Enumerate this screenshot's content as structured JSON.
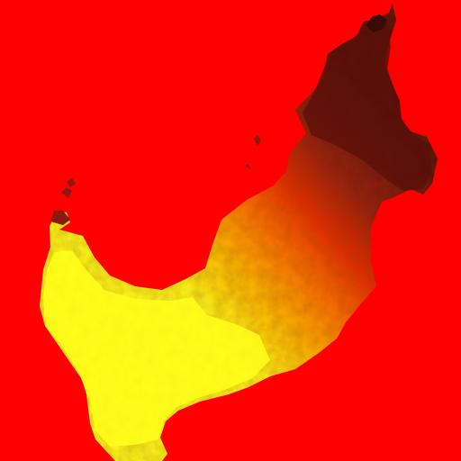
{
  "map": {
    "type": "choropleth-heatmap",
    "legend_visible": false,
    "labels_visible": false,
    "colors": {
      "background": "#ff0000",
      "high": "#ffff1a",
      "mid_high": "#ffc000",
      "mid": "#ff7a00",
      "mid_low": "#d81c00",
      "low": "#5a0f0a"
    }
  }
}
